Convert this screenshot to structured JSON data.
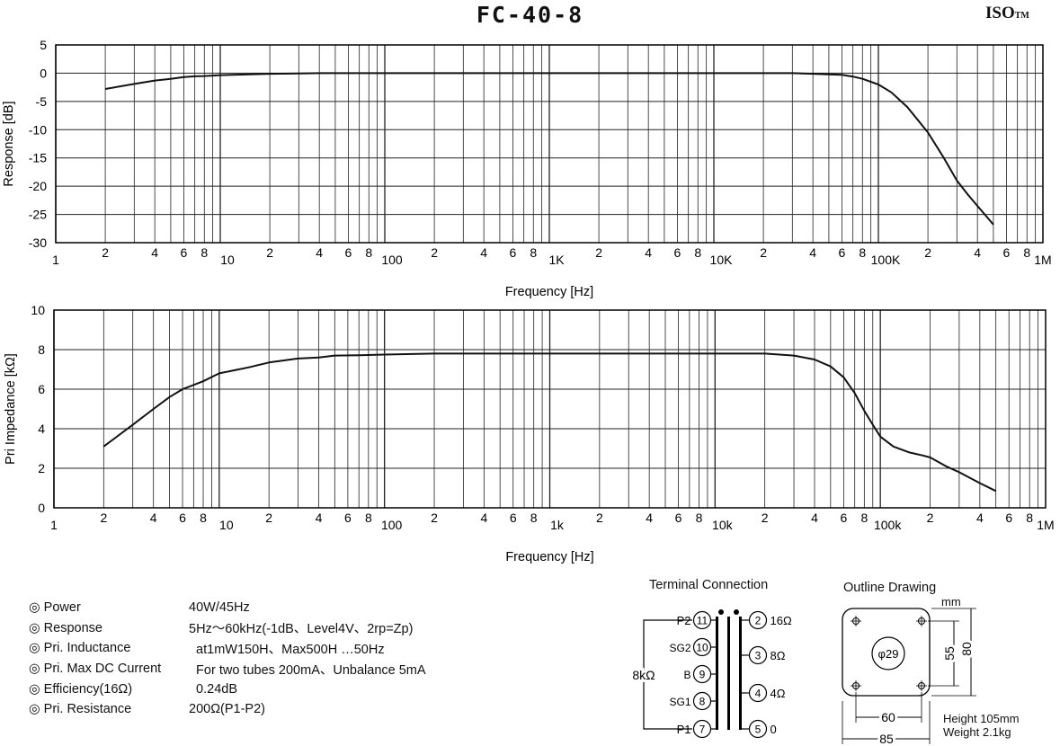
{
  "header": {
    "title": "FC-40-8",
    "brand": "ISO",
    "brand_tm": "TM"
  },
  "chart_data": [
    {
      "type": "line",
      "title": "",
      "xlabel": "Frequency [Hz]",
      "ylabel": "Response [dB]",
      "xscale": "log",
      "xlim": [
        1,
        1000000
      ],
      "ylim": [
        -30,
        5
      ],
      "yticks": [
        5,
        0,
        -5,
        -10,
        -15,
        -20,
        -25,
        -30
      ],
      "xtick_labels": [
        "1",
        "2",
        "4",
        "6",
        "8",
        "10",
        "2",
        "4",
        "6",
        "8",
        "100",
        "2",
        "4",
        "6",
        "8",
        "1K",
        "2",
        "4",
        "6",
        "8",
        "10K",
        "2",
        "4",
        "6",
        "8",
        "100K",
        "2",
        "4",
        "6",
        "8",
        "1M"
      ],
      "grid": true,
      "series": [
        {
          "x": [
            2,
            3,
            4,
            5,
            6,
            7,
            8,
            10,
            15,
            20,
            30,
            40,
            50,
            100,
            1000,
            10000,
            20000,
            30000,
            40000,
            50000,
            60000,
            70000,
            80000,
            100000,
            120000,
            150000,
            200000,
            250000,
            300000,
            350000,
            400000,
            500000
          ],
          "y": [
            -2.8,
            -1.9,
            -1.3,
            -1.0,
            -0.7,
            -0.55,
            -0.5,
            -0.35,
            -0.2,
            -0.1,
            -0.05,
            0,
            0,
            0,
            0,
            0,
            0,
            0,
            -0.1,
            -0.2,
            -0.3,
            -0.6,
            -1.0,
            -2.0,
            -3.4,
            -6.0,
            -10.5,
            -15.0,
            -19.0,
            -21.5,
            -23.5,
            -26.8
          ]
        }
      ]
    },
    {
      "type": "line",
      "title": "",
      "xlabel": "Frequency [Hz]",
      "ylabel": "Pri Impedance [kΩ]",
      "xscale": "log",
      "xlim": [
        1,
        1000000
      ],
      "ylim": [
        0,
        10
      ],
      "yticks": [
        10,
        8,
        6,
        4,
        2,
        0
      ],
      "xtick_labels": [
        "1",
        "2",
        "4",
        "6",
        "8",
        "10",
        "2",
        "4",
        "6",
        "8",
        "100",
        "2",
        "4",
        "6",
        "8",
        "1k",
        "2",
        "4",
        "6",
        "8",
        "10k",
        "2",
        "4",
        "6",
        "8",
        "100k",
        "2",
        "4",
        "6",
        "8",
        "1M"
      ],
      "grid": true,
      "series": [
        {
          "x": [
            2,
            3,
            4,
            5,
            6,
            8,
            10,
            15,
            20,
            30,
            40,
            50,
            70,
            100,
            200,
            500,
            1000,
            5000,
            10000,
            20000,
            30000,
            40000,
            50000,
            60000,
            70000,
            80000,
            90000,
            100000,
            120000,
            150000,
            180000,
            200000,
            250000,
            300000,
            400000,
            500000
          ],
          "y": [
            3.1,
            4.2,
            5.0,
            5.6,
            6.0,
            6.4,
            6.8,
            7.1,
            7.35,
            7.55,
            7.6,
            7.7,
            7.72,
            7.75,
            7.8,
            7.8,
            7.8,
            7.8,
            7.8,
            7.8,
            7.7,
            7.5,
            7.15,
            6.6,
            5.8,
            4.9,
            4.2,
            3.6,
            3.1,
            2.8,
            2.65,
            2.55,
            2.1,
            1.8,
            1.25,
            0.85
          ]
        }
      ]
    }
  ],
  "specs": [
    {
      "key": "◎ Power",
      "value": "40W/45Hz"
    },
    {
      "key": "◎ Response",
      "value": "5Hz～60kHz(-1dB、Level4V、2rp=Zp)"
    },
    {
      "key": "◎ Pri. Inductance",
      "value": "  at1mW150H、Max500H …50Hz"
    },
    {
      "key": "◎ Pri. Max DC Current",
      "value": "  For two tubes 200mA、Unbalance 5mA"
    },
    {
      "key": "◎ Efficiency(16Ω)",
      "value": "  0.24dB"
    },
    {
      "key": "◎ Pri. Resistance",
      "value": "200Ω(P1-P2)"
    }
  ],
  "terminal": {
    "title": "Terminal Connection",
    "impedance": "8kΩ",
    "primary": [
      {
        "name": "P2",
        "num": "11"
      },
      {
        "name": "SG2",
        "num": "10"
      },
      {
        "name": "B",
        "num": "9"
      },
      {
        "name": "SG1",
        "num": "8"
      },
      {
        "name": "P1",
        "num": "7"
      }
    ],
    "secondary": [
      {
        "num": "2",
        "name": "16Ω"
      },
      {
        "num": "3",
        "name": "8Ω"
      },
      {
        "num": "4",
        "name": "4Ω"
      },
      {
        "num": "5",
        "name": "0"
      }
    ]
  },
  "outline": {
    "title": "Outline Drawing",
    "unit": "mm",
    "hole_label": "φ29",
    "dim_inner_w": "60",
    "dim_outer_w": "85",
    "dim_inner_h": "55",
    "dim_outer_h": "80",
    "height": "Height 105mm",
    "weight": "Weight 2.1kg"
  },
  "colors": {
    "line": "#111111",
    "grid": "#222222"
  }
}
